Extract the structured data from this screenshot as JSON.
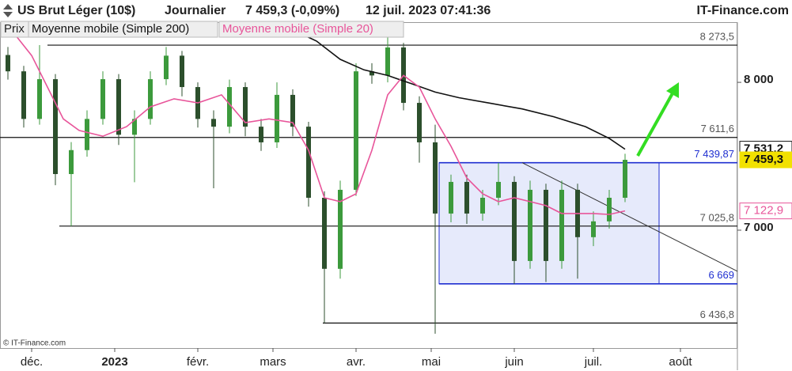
{
  "chart_data": {
    "type": "candlestick",
    "title": "US Brut Léger (10$)",
    "interval": "Journalier",
    "last_quote": "7 459,3 (-0,09%)",
    "timestamp": "12 juil. 2023 07:41:36",
    "source": "IT-Finance.com",
    "copyright": "© IT-Finance.com",
    "log_scale": true,
    "ylim": [
      6293,
      8447
    ],
    "xlim": [
      -1,
      185.4
    ],
    "yticks": [
      {
        "value": 8000,
        "label": "8 000"
      },
      {
        "value": 7000,
        "label": "7 000"
      }
    ],
    "xticks": [
      {
        "value": 7,
        "label": "déc."
      },
      {
        "value": 28,
        "label": "2023"
      },
      {
        "value": 49,
        "label": "févr."
      },
      {
        "value": 68,
        "label": "mars"
      },
      {
        "value": 89,
        "label": "avr."
      },
      {
        "value": 108,
        "label": "mai"
      },
      {
        "value": 129,
        "label": "juin"
      },
      {
        "value": 149,
        "label": "juil."
      },
      {
        "value": 171,
        "label": "août"
      }
    ],
    "candles": {
      "name": "Prix",
      "up_color": "#3c9a3c",
      "down_color": "#2c4f2c",
      "last_label": "7 459,3",
      "x": [
        1,
        5,
        9,
        13,
        17,
        21,
        25,
        29,
        33,
        37,
        41,
        45,
        49,
        53,
        57,
        61,
        65,
        69,
        73,
        77,
        81,
        85,
        89,
        93,
        97,
        101,
        105,
        109,
        113,
        117,
        121,
        125,
        129,
        133,
        137,
        141,
        145,
        149,
        153,
        157
      ],
      "open": [
        8200,
        8080,
        7740,
        8023,
        7364,
        7525,
        7740,
        8023,
        7630,
        7740,
        8023,
        8195,
        7966,
        7740,
        7686,
        7966,
        7686,
        7578,
        7910,
        7686,
        7208,
        6760,
        7260,
        8080,
        8050,
        8256,
        7853,
        7578,
        7106,
        7312,
        7106,
        7208,
        7312,
        6808,
        7260,
        6808,
        7260,
        6956,
        7056,
        7208
      ],
      "high": [
        8260,
        8120,
        8273.5,
        8060,
        7580,
        7800,
        8080,
        8060,
        7800,
        8080,
        8260,
        8230,
        8000,
        7800,
        8020,
        8000,
        7740,
        8000,
        7950,
        7720,
        7250,
        7320,
        8140,
        8140,
        8330,
        8290,
        7900,
        7700,
        7360,
        7360,
        7260,
        7439.87,
        7350,
        7320,
        7300,
        7320,
        7300,
        7120,
        7260,
        7500
      ],
      "low": [
        8020,
        7680,
        7700,
        7290,
        7025.8,
        7480,
        7700,
        7560,
        7310,
        7700,
        7980,
        7900,
        7680,
        7270,
        7640,
        7620,
        7520,
        7540,
        7620,
        7150,
        6436.8,
        6700,
        7220,
        7990,
        8000,
        7800,
        7440,
        6375,
        7050,
        7040,
        7060,
        7160,
        6669,
        6760,
        6680,
        6760,
        6700,
        6900,
        7010,
        7180
      ],
      "close": [
        8080,
        7740,
        8023,
        7364,
        7525,
        7740,
        8023,
        7630,
        7740,
        8023,
        8195,
        7966,
        7740,
        7686,
        7966,
        7686,
        7578,
        7910,
        7686,
        7208,
        6760,
        7260,
        8080,
        8050,
        8256,
        7853,
        7578,
        7106,
        7312,
        7106,
        7208,
        7312,
        6808,
        7260,
        6808,
        7260,
        6956,
        7056,
        7208,
        7459.3
      ]
    },
    "lines": [
      {
        "name": "Moyenne mobile (Simple 200)",
        "color": "#111111",
        "last_label": "7 531,2",
        "x": [
          74,
          79,
          85,
          91,
          97,
          103,
          109,
          115,
          123,
          131,
          139,
          147,
          153,
          157
        ],
        "values": [
          8374,
          8304,
          8168,
          8091,
          8050,
          7990,
          7930,
          7890,
          7850,
          7810,
          7755,
          7686,
          7605,
          7531.2
        ]
      },
      {
        "name": "Moyenne mobile (Simple 20)",
        "color": "#e8559a",
        "last_label": "7 122,9",
        "x": [
          3,
          7,
          11,
          15,
          19,
          25,
          31,
          37,
          43,
          49,
          55,
          61,
          67,
          73,
          77,
          81,
          85,
          89,
          93,
          97,
          101,
          105,
          109,
          113,
          117,
          121,
          125,
          129,
          133,
          137,
          141,
          145,
          149,
          153,
          157
        ],
        "values": [
          8345,
          8196,
          7966,
          7740,
          7660,
          7620,
          7686,
          7825,
          7882,
          7853,
          7910,
          7714,
          7740,
          7714,
          7524,
          7208,
          7183,
          7234,
          7524,
          7910,
          8050,
          7966,
          7740,
          7551,
          7338,
          7234,
          7183,
          7208,
          7183,
          7157,
          7106,
          7106,
          7106,
          7100,
          7122.9
        ]
      }
    ],
    "levels": [
      {
        "value": 8273.5,
        "label": "8 273,5",
        "color": "#111111",
        "x_start": 11
      },
      {
        "value": 7611.6,
        "label": "7 611,6",
        "color": "#111111",
        "x_start": -1
      },
      {
        "value": 7439.87,
        "label": "7 439,87",
        "color": "#1f2fd0",
        "x_start": 110
      },
      {
        "value": 7025.8,
        "label": "7 025,8",
        "color": "#111111",
        "x_start": 14
      },
      {
        "value": 6669,
        "label": "6 669",
        "color": "#1f2fd0",
        "x_start": 110
      },
      {
        "value": 6436.8,
        "label": "6 436,8",
        "color": "#111111",
        "x_start": 80.6
      }
    ],
    "box": {
      "x": [
        110,
        165.6
      ],
      "range": [
        6669,
        7439.87
      ],
      "color": "#1f2fd0",
      "fill": "#e6eafb"
    },
    "trendline": {
      "x": [
        131,
        185.4
      ],
      "values": [
        7439.87,
        6745
      ],
      "color": "#333333"
    }
  }
}
